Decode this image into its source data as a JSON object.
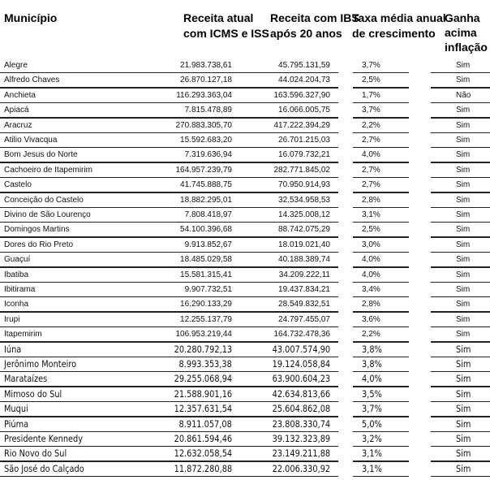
{
  "headers": {
    "municipio": "Município",
    "receita_atual": [
      "Receita atual",
      "com ICMS e ISS"
    ],
    "receita_ibs": [
      "Receita com IBS",
      "após 20 anos"
    ],
    "taxa": [
      "Taxa média anual",
      "de crescimento"
    ],
    "ganha": [
      "Ganha",
      "acima",
      "inflação"
    ]
  },
  "rows": [
    [
      "Alegre",
      "21.983.738,61",
      "45.795.131,59",
      "3,7%",
      "Sim"
    ],
    [
      "Alfredo Chaves",
      "26.870.127,18",
      "44.024.204,73",
      "2,5%",
      "Sim"
    ],
    [
      "Anchieta",
      "116.293.363,04",
      "163.596.327,90",
      "1,7%",
      "Não"
    ],
    [
      "Apiacá",
      "7.815.478,89",
      "16.066.005,75",
      "3,7%",
      "Sim"
    ],
    [
      "Aracruz",
      "270.883.305,70",
      "417.222.394,29",
      "2,2%",
      "Sim"
    ],
    [
      "Atilio Vivacqua",
      "15.592.683,20",
      "26.701.215,03",
      "2,7%",
      "Sim"
    ],
    [
      "Bom Jesus do Norte",
      "7.319.636,94",
      "16.079.732,21",
      "4,0%",
      "Sim"
    ],
    [
      "Cachoeiro de Itapemirim",
      "164.957.239,79",
      "282.771.845,02",
      "2,7%",
      "Sim"
    ],
    [
      "Castelo",
      "41.745.888,75",
      "70.950.914,93",
      "2,7%",
      "Sim"
    ],
    [
      "Conceição do Castelo",
      "18.882.295,01",
      "32.534.958,53",
      "2,8%",
      "Sim"
    ],
    [
      "Divino de São Lourenço",
      "7.808.418,97",
      "14.325.008,12",
      "3,1%",
      "Sim"
    ],
    [
      "Domingos Martins",
      "54.100.396,68",
      "88.742.075,29",
      "2,5%",
      "Sim"
    ],
    [
      "Dores do Rio Preto",
      "9.913.852,67",
      "18.019.021,40",
      "3,0%",
      "Sim"
    ],
    [
      "Guaçuí",
      "18.485.029,58",
      "40.188.389,74",
      "4,0%",
      "Sim"
    ],
    [
      "Ibatiba",
      "15.581.315,41",
      "34.209.222,11",
      "4,0%",
      "Sim"
    ],
    [
      "Ibitirama",
      "9.907.732,51",
      "19.437.834,21",
      "3,4%",
      "Sim"
    ],
    [
      "Iconha",
      "16.290.133,29",
      "28.549.832,51",
      "2,8%",
      "Sim"
    ],
    [
      "Irupi",
      "12.255.137,79",
      "24.797.455,07",
      "3,6%",
      "Sim"
    ],
    [
      "Itapemirim",
      "106.953.219,44",
      "164.732.478,36",
      "2,2%",
      "Sim"
    ],
    [
      "Iúna",
      "20.280.792,13",
      "43.007.574,90",
      "3,8%",
      "Sim"
    ],
    [
      "Jerônimo Monteiro",
      "8.993.353,38",
      "19.124.058,84",
      "3,8%",
      "Sim"
    ],
    [
      "Marataízes",
      "29.255.068,94",
      "63.900.604,23",
      "4,0%",
      "Sim"
    ],
    [
      "Mimoso do Sul",
      "21.588.901,16",
      "42.634.813,66",
      "3,5%",
      "Sim"
    ],
    [
      "Muqui",
      "12.357.631,54",
      "25.604.862,08",
      "3,7%",
      "Sim"
    ],
    [
      "Piúma",
      "8.911.057,08",
      "23.808.330,74",
      "5,0%",
      "Sim"
    ],
    [
      "Presidente Kennedy",
      "20.861.594,46",
      "39.132.323,89",
      "3,2%",
      "Sim"
    ],
    [
      "Rio Novo do Sul",
      "12.632.058,54",
      "23.149.211,88",
      "3,1%",
      "Sim"
    ],
    [
      "São José do Calçado",
      "11.872.280,88",
      "22.006.330,92",
      "3,1%",
      "Sim"
    ]
  ]
}
